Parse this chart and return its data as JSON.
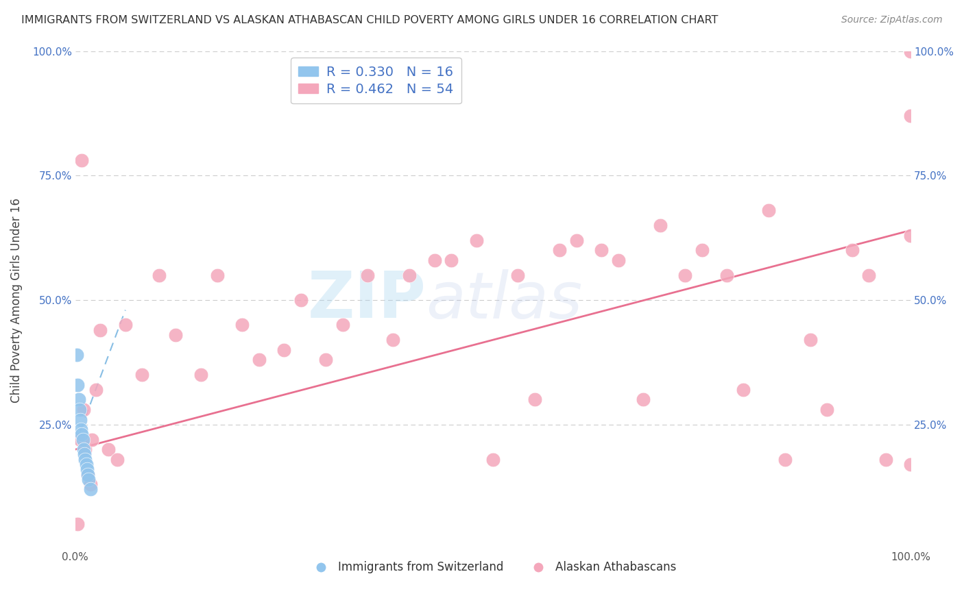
{
  "title": "IMMIGRANTS FROM SWITZERLAND VS ALASKAN ATHABASCAN CHILD POVERTY AMONG GIRLS UNDER 16 CORRELATION CHART",
  "source": "Source: ZipAtlas.com",
  "ylabel": "Child Poverty Among Girls Under 16",
  "xlim": [
    0,
    1
  ],
  "ylim": [
    0,
    1
  ],
  "blue_R": 0.33,
  "blue_N": 16,
  "pink_R": 0.462,
  "pink_N": 54,
  "blue_color": "#92C5ED",
  "pink_color": "#F4A7BB",
  "blue_edge": "#6aaede",
  "pink_edge": "#e87090",
  "blue_label": "Immigrants from Switzerland",
  "pink_label": "Alaskan Athabascans",
  "blue_x": [
    0.002,
    0.003,
    0.004,
    0.005,
    0.006,
    0.007,
    0.008,
    0.009,
    0.01,
    0.011,
    0.012,
    0.013,
    0.014,
    0.015,
    0.016,
    0.018
  ],
  "blue_y": [
    0.39,
    0.33,
    0.3,
    0.28,
    0.26,
    0.24,
    0.23,
    0.22,
    0.2,
    0.19,
    0.18,
    0.17,
    0.16,
    0.15,
    0.14,
    0.12
  ],
  "pink_x": [
    0.003,
    0.006,
    0.008,
    0.01,
    0.012,
    0.015,
    0.018,
    0.02,
    0.025,
    0.03,
    0.04,
    0.05,
    0.06,
    0.08,
    0.1,
    0.12,
    0.15,
    0.17,
    0.2,
    0.22,
    0.25,
    0.27,
    0.3,
    0.32,
    0.35,
    0.38,
    0.4,
    0.43,
    0.45,
    0.48,
    0.5,
    0.53,
    0.55,
    0.58,
    0.6,
    0.63,
    0.65,
    0.68,
    0.7,
    0.73,
    0.75,
    0.78,
    0.8,
    0.83,
    0.85,
    0.88,
    0.9,
    0.93,
    0.95,
    0.97,
    1.0,
    1.0,
    1.0,
    1.0
  ],
  "pink_y": [
    0.05,
    0.22,
    0.78,
    0.28,
    0.2,
    0.15,
    0.13,
    0.22,
    0.32,
    0.44,
    0.2,
    0.18,
    0.45,
    0.35,
    0.55,
    0.43,
    0.35,
    0.55,
    0.45,
    0.38,
    0.4,
    0.5,
    0.38,
    0.45,
    0.55,
    0.42,
    0.55,
    0.58,
    0.58,
    0.62,
    0.18,
    0.55,
    0.3,
    0.6,
    0.62,
    0.6,
    0.58,
    0.3,
    0.65,
    0.55,
    0.6,
    0.55,
    0.32,
    0.68,
    0.18,
    0.42,
    0.28,
    0.6,
    0.55,
    0.18,
    0.17,
    0.63,
    0.87,
    1.0
  ],
  "blue_line_slope": 4.5,
  "blue_line_intercept": 0.21,
  "pink_line_x0": 0.0,
  "pink_line_y0": 0.2,
  "pink_line_x1": 1.0,
  "pink_line_y1": 0.64,
  "watermark_zip": "ZIP",
  "watermark_atlas": "atlas",
  "background_color": "#ffffff",
  "grid_color": "#cccccc",
  "label_color": "#4472C4",
  "title_color": "#333333"
}
